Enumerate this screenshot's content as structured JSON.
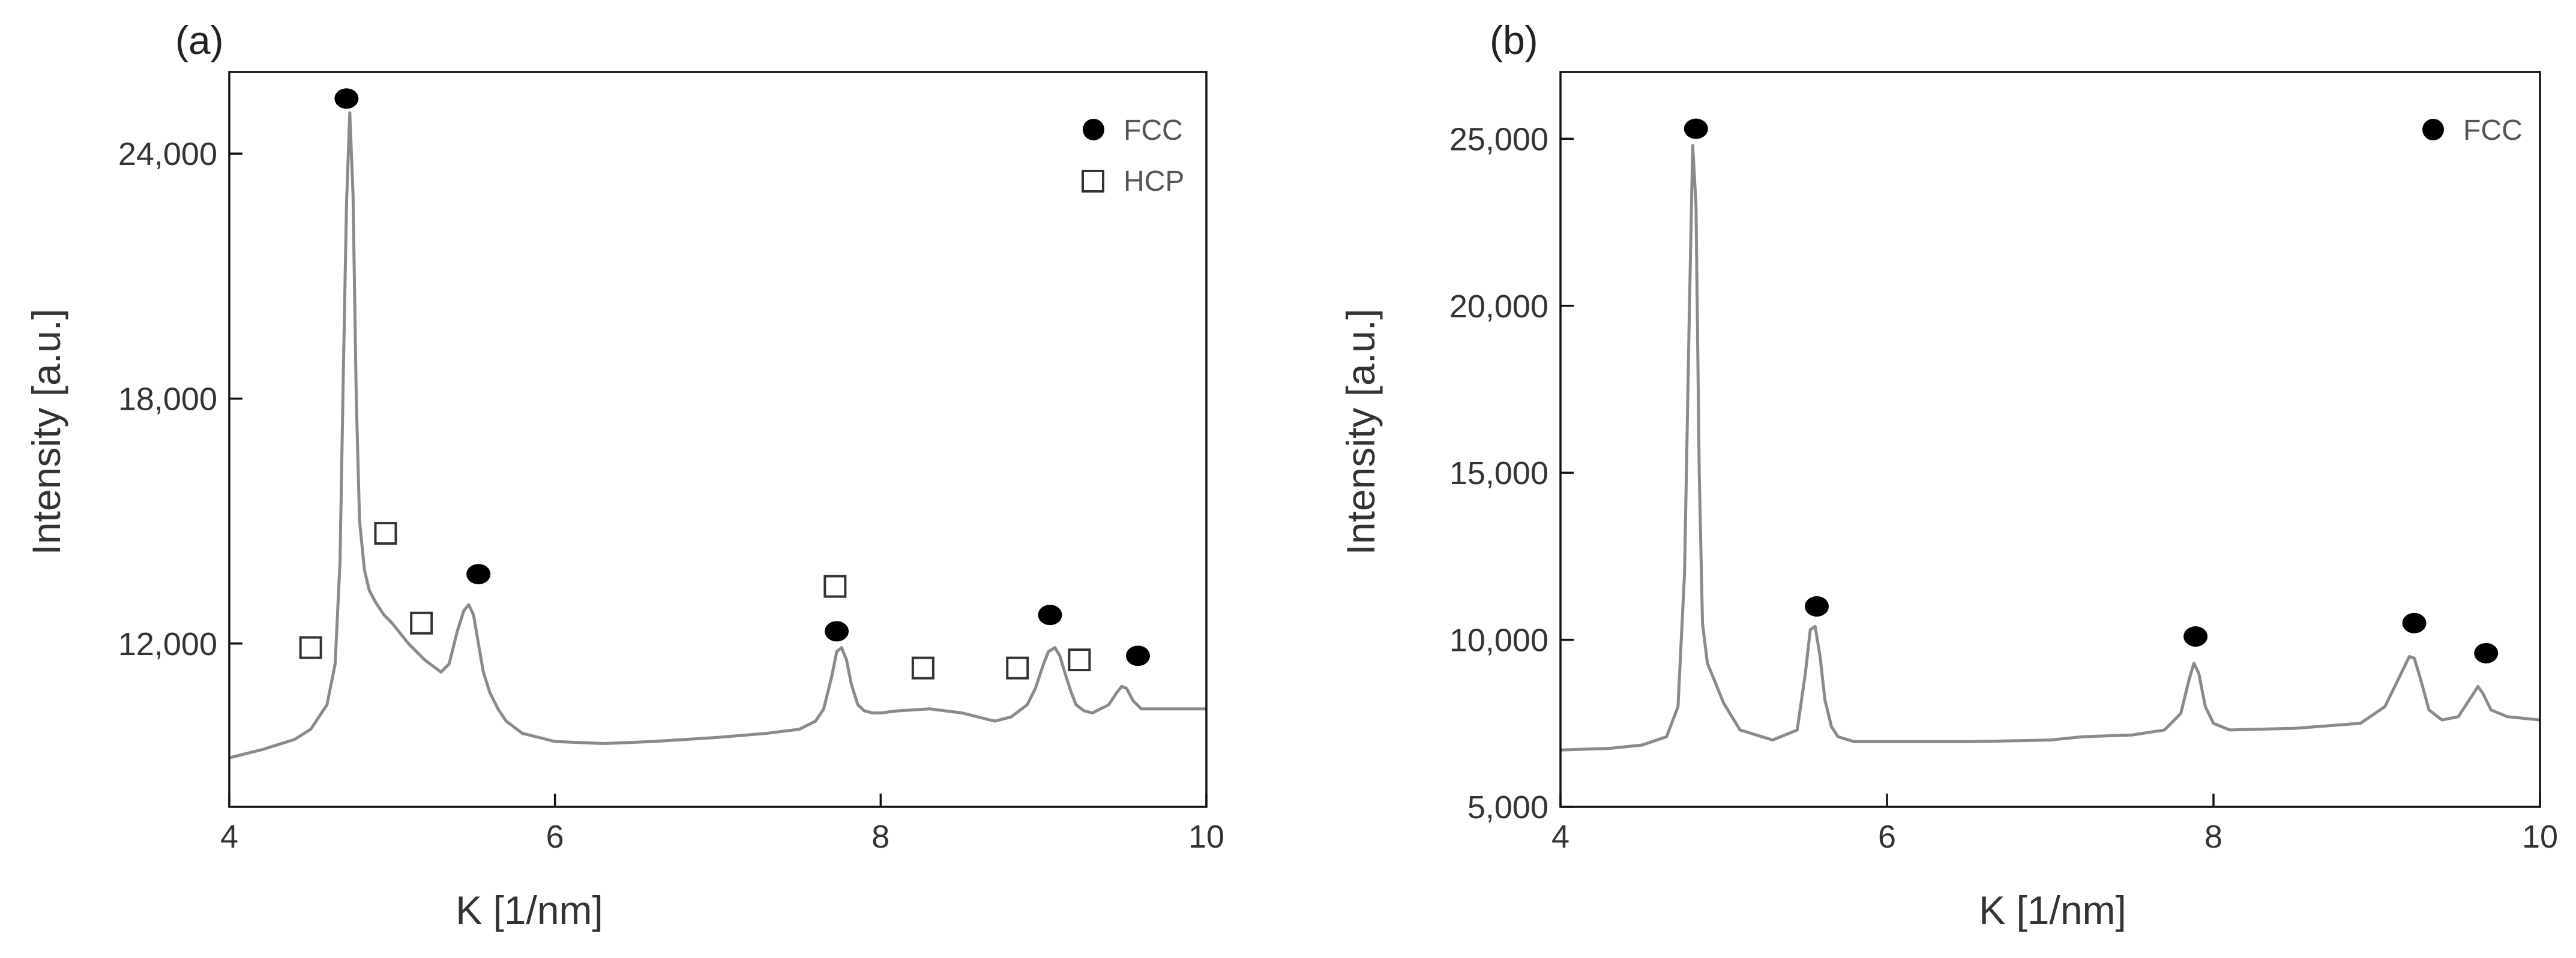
{
  "chart_data": [
    {
      "type": "line",
      "panel": "(a)",
      "xlabel": "K [1/nm]",
      "ylabel": "Intensity [a.u.]",
      "xlim": [
        4,
        10
      ],
      "ylim": [
        8000,
        26000
      ],
      "xticks": [
        4,
        6,
        8,
        10
      ],
      "xtick_labels": [
        "4",
        "6",
        "8",
        "10"
      ],
      "yticks": [
        12000,
        18000,
        24000
      ],
      "ytick_labels": [
        "12,000",
        "18,000",
        "24,000"
      ],
      "legend": [
        {
          "label": "FCC",
          "marker": "filled-circle"
        },
        {
          "label": "HCP",
          "marker": "open-square"
        }
      ],
      "legend_position": "top-right",
      "series": [
        {
          "name": "Intensity",
          "x": [
            4.0,
            4.2,
            4.4,
            4.5,
            4.6,
            4.65,
            4.68,
            4.7,
            4.72,
            4.74,
            4.76,
            4.78,
            4.8,
            4.83,
            4.86,
            4.9,
            4.95,
            5.0,
            5.1,
            5.2,
            5.3,
            5.35,
            5.4,
            5.44,
            5.47,
            5.5,
            5.53,
            5.56,
            5.6,
            5.65,
            5.7,
            5.8,
            6.0,
            6.3,
            6.6,
            7.0,
            7.3,
            7.5,
            7.6,
            7.65,
            7.7,
            7.73,
            7.76,
            7.79,
            7.82,
            7.86,
            7.9,
            7.95,
            8.0,
            8.1,
            8.3,
            8.5,
            8.7,
            8.8,
            8.9,
            8.95,
            9.0,
            9.03,
            9.07,
            9.1,
            9.13,
            9.17,
            9.2,
            9.25,
            9.3,
            9.4,
            9.45,
            9.48,
            9.51,
            9.55,
            9.6,
            9.7,
            9.8,
            10.0
          ],
          "values": [
            9200,
            9400,
            9650,
            9900,
            10500,
            11500,
            14000,
            18500,
            22800,
            25000,
            23000,
            18000,
            15000,
            13800,
            13300,
            13000,
            12700,
            12500,
            12000,
            11600,
            11300,
            11500,
            12300,
            12800,
            12950,
            12700,
            12000,
            11300,
            10800,
            10400,
            10100,
            9800,
            9600,
            9550,
            9600,
            9700,
            9800,
            9900,
            10100,
            10400,
            11200,
            11800,
            11900,
            11600,
            11000,
            10500,
            10350,
            10300,
            10300,
            10350,
            10400,
            10300,
            10100,
            10200,
            10500,
            10900,
            11500,
            11800,
            11900,
            11700,
            11300,
            10800,
            10500,
            10350,
            10300,
            10500,
            10800,
            10950,
            10900,
            10600,
            10400,
            10400,
            10400,
            10400
          ]
        }
      ],
      "markers": [
        {
          "type": "FCC",
          "x": 4.72,
          "y": 25350
        },
        {
          "type": "FCC",
          "x": 5.53,
          "y": 13700
        },
        {
          "type": "FCC",
          "x": 7.73,
          "y": 12300
        },
        {
          "type": "FCC",
          "x": 9.04,
          "y": 12700
        },
        {
          "type": "FCC",
          "x": 9.58,
          "y": 11700
        },
        {
          "type": "HCP",
          "x": 4.5,
          "y": 11900
        },
        {
          "type": "HCP",
          "x": 4.96,
          "y": 14700
        },
        {
          "type": "HCP",
          "x": 5.18,
          "y": 12500
        },
        {
          "type": "HCP",
          "x": 7.72,
          "y": 13400
        },
        {
          "type": "HCP",
          "x": 8.26,
          "y": 11400
        },
        {
          "type": "HCP",
          "x": 8.84,
          "y": 11400
        },
        {
          "type": "HCP",
          "x": 9.22,
          "y": 11600
        }
      ]
    },
    {
      "type": "line",
      "panel": "(b)",
      "xlabel": "K [1/nm]",
      "ylabel": "Intensity [a.u.]",
      "xlim": [
        4,
        10
      ],
      "ylim": [
        5000,
        27000
      ],
      "xticks": [
        4,
        6,
        8,
        10
      ],
      "xtick_labels": [
        "4",
        "6",
        "8",
        "10"
      ],
      "yticks": [
        5000,
        10000,
        15000,
        20000,
        25000
      ],
      "ytick_labels": [
        "5,000",
        "10,000",
        "15,000",
        "20,000",
        "25,000"
      ],
      "legend": [
        {
          "label": "FCC",
          "marker": "filled-circle"
        }
      ],
      "legend_position": "top-right",
      "series": [
        {
          "name": "Intensity",
          "x": [
            4.0,
            4.3,
            4.5,
            4.65,
            4.72,
            4.76,
            4.79,
            4.81,
            4.83,
            4.85,
            4.87,
            4.9,
            4.95,
            5.0,
            5.1,
            5.3,
            5.45,
            5.5,
            5.53,
            5.56,
            5.59,
            5.62,
            5.66,
            5.7,
            5.8,
            6.0,
            6.5,
            7.0,
            7.2,
            7.5,
            7.7,
            7.8,
            7.85,
            7.88,
            7.91,
            7.95,
            8.0,
            8.1,
            8.5,
            8.9,
            9.05,
            9.15,
            9.2,
            9.23,
            9.27,
            9.32,
            9.4,
            9.5,
            9.58,
            9.62,
            9.65,
            9.7,
            9.8,
            10.0
          ],
          "values": [
            6700,
            6750,
            6850,
            7100,
            8000,
            12000,
            20000,
            24800,
            23000,
            15000,
            10500,
            9300,
            8700,
            8100,
            7300,
            7000,
            7300,
            9000,
            10300,
            10400,
            9500,
            8200,
            7400,
            7100,
            6950,
            6950,
            6950,
            7000,
            7100,
            7150,
            7300,
            7800,
            8800,
            9300,
            9000,
            8000,
            7500,
            7300,
            7350,
            7500,
            8000,
            9000,
            9500,
            9450,
            8800,
            7900,
            7600,
            7700,
            8300,
            8600,
            8400,
            7900,
            7700,
            7600
          ]
        }
      ],
      "markers": [
        {
          "type": "FCC",
          "x": 4.83,
          "y": 25300
        },
        {
          "type": "FCC",
          "x": 5.57,
          "y": 11000
        },
        {
          "type": "FCC",
          "x": 7.89,
          "y": 10100
        },
        {
          "type": "FCC",
          "x": 9.23,
          "y": 10500
        },
        {
          "type": "FCC",
          "x": 9.67,
          "y": 9600
        }
      ]
    }
  ]
}
